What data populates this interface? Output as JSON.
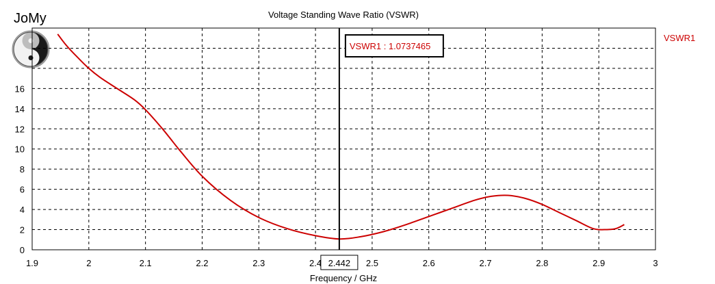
{
  "logo": {
    "text": "JoMy",
    "icon": "yin-yang-icon"
  },
  "chart_data": {
    "type": "line",
    "title": "Voltage Standing Wave Ratio (VSWR)",
    "xlabel": "Frequency / GHz",
    "ylabel": "",
    "xlim": [
      1.9,
      3.0
    ],
    "ylim": [
      0,
      22
    ],
    "x_ticks": [
      "1.9",
      "2",
      "2.1",
      "2.2",
      "2.3",
      "2.4",
      "2.5",
      "2.6",
      "2.7",
      "2.8",
      "2.9",
      "3"
    ],
    "y_ticks": [
      "0",
      "2",
      "4",
      "6",
      "8",
      "10",
      "12",
      "14",
      "16"
    ],
    "grid": true,
    "legend": "top-right",
    "series": [
      {
        "name": "VSWR1",
        "color": "#cc0000",
        "x": [
          1.945,
          1.96,
          1.98,
          2.0,
          2.02,
          2.05,
          2.08,
          2.1,
          2.13,
          2.16,
          2.2,
          2.25,
          2.3,
          2.35,
          2.4,
          2.442,
          2.48,
          2.52,
          2.56,
          2.6,
          2.64,
          2.68,
          2.71,
          2.74,
          2.77,
          2.8,
          2.83,
          2.86,
          2.89,
          2.91,
          2.93,
          2.945
        ],
        "y": [
          21.4,
          20.3,
          19.1,
          18.0,
          17.1,
          16.0,
          14.9,
          13.9,
          12.0,
          9.9,
          7.3,
          4.9,
          3.2,
          2.1,
          1.4,
          1.07,
          1.3,
          1.8,
          2.5,
          3.3,
          4.1,
          4.9,
          5.3,
          5.4,
          5.1,
          4.5,
          3.7,
          2.9,
          2.1,
          2.0,
          2.1,
          2.5
        ]
      }
    ],
    "marker": {
      "x": 2.442,
      "x_label": "2.442",
      "label": "VSWR1 : 1.0737465"
    }
  }
}
